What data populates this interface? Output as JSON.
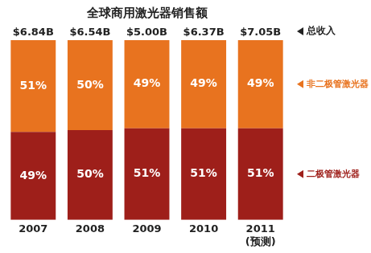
{
  "chart_data": {
    "type": "bar",
    "title": "全球商用激光器销售额",
    "categories": [
      "2007",
      "2008",
      "2009",
      "2010",
      "2011\n(预测)"
    ],
    "series": [
      {
        "name": "二极管激光器",
        "color": "#9e1f1a",
        "values": [
          49,
          50,
          51,
          51,
          51
        ],
        "value_labels": [
          "49%",
          "50%",
          "51%",
          "51%",
          "51%"
        ]
      },
      {
        "name": "非二极管激光器",
        "color": "#e8731f",
        "values": [
          51,
          50,
          49,
          49,
          49
        ],
        "value_labels": [
          "51%",
          "50%",
          "49%",
          "49%",
          "49%"
        ]
      }
    ],
    "totals": [
      6.84,
      6.54,
      5.0,
      6.37,
      7.05
    ],
    "total_labels": [
      "$6.84B",
      "$6.54B",
      "$5.00B",
      "$6.37B",
      "$7.05B"
    ],
    "total_name": "总收入",
    "ylim": [
      0,
      100
    ],
    "stacked": true,
    "data_labels": true,
    "grid": false,
    "tick_labels": "x"
  }
}
